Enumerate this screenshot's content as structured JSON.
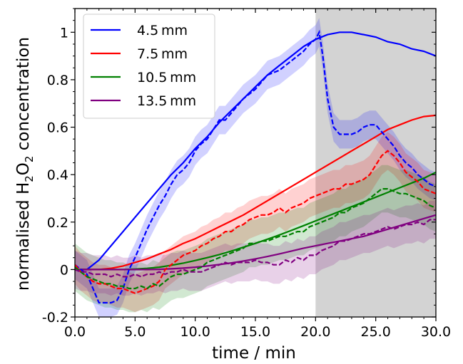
{
  "chart_data": {
    "type": "line",
    "xlabel": "time / min",
    "ylabel_prefix": "normalised H",
    "ylabel_sub1": "2",
    "ylabel_mid": "O",
    "ylabel_sub2": "2",
    "ylabel_suffix": " concentration",
    "xlim": [
      0,
      30
    ],
    "ylim": [
      -0.2,
      1.1
    ],
    "x_ticks": [
      0,
      5,
      10,
      15,
      20,
      25,
      30
    ],
    "x_tick_labels": [
      "0.0",
      "5.0",
      "10.0",
      "15.0",
      "20.0",
      "25.0",
      "30.0"
    ],
    "y_ticks": [
      -0.2,
      0,
      0.2,
      0.4,
      0.6,
      0.8,
      1
    ],
    "y_tick_labels": [
      "-0.2",
      "0",
      "0.2",
      "0.4",
      "0.6",
      "0.8",
      "1"
    ],
    "shaded_region": {
      "x_start": 20,
      "x_end": 30,
      "color": "#d3d3d3"
    },
    "legend_position": "top-left",
    "series": [
      {
        "name": "4.5 mm",
        "color": "#0000ff",
        "model_x": [
          0,
          1,
          2,
          3,
          4,
          5,
          6,
          7,
          8,
          9,
          10,
          11,
          12,
          13,
          14,
          15,
          16,
          17,
          18,
          19,
          20,
          21,
          22,
          23,
          24,
          25,
          26,
          27,
          28,
          29,
          30
        ],
        "model_y": [
          0,
          0,
          0.04,
          0.1,
          0.16,
          0.22,
          0.28,
          0.34,
          0.4,
          0.45,
          0.51,
          0.56,
          0.62,
          0.67,
          0.72,
          0.77,
          0.82,
          0.86,
          0.9,
          0.94,
          0.97,
          0.99,
          1.0,
          1.0,
          0.99,
          0.98,
          0.96,
          0.95,
          0.93,
          0.92,
          0.9
        ],
        "measured_x": [
          0,
          0.5,
          1,
          1.5,
          2,
          2.5,
          3,
          3.5,
          4,
          4.5,
          5,
          5.5,
          6,
          6.5,
          7,
          7.5,
          8,
          8.5,
          9,
          9.5,
          10,
          10.5,
          11,
          11.5,
          12,
          12.5,
          13,
          13.5,
          14,
          14.5,
          15,
          15.5,
          16,
          16.5,
          17,
          17.5,
          18,
          18.5,
          19,
          19.5,
          20,
          20.3,
          20.6,
          21,
          21.5,
          22,
          22.5,
          23,
          23.5,
          24,
          24.5,
          25,
          25.5,
          26,
          26.5,
          27,
          27.5,
          28,
          28.5,
          29,
          29.5,
          30
        ],
        "measured_y": [
          0.02,
          0.0,
          -0.02,
          -0.08,
          -0.14,
          -0.14,
          -0.14,
          -0.13,
          -0.08,
          0.0,
          0.05,
          0.11,
          0.17,
          0.22,
          0.27,
          0.31,
          0.36,
          0.4,
          0.42,
          0.45,
          0.5,
          0.53,
          0.55,
          0.59,
          0.63,
          0.63,
          0.66,
          0.69,
          0.72,
          0.74,
          0.76,
          0.79,
          0.82,
          0.83,
          0.84,
          0.86,
          0.88,
          0.9,
          0.92,
          0.95,
          0.97,
          1.0,
          0.9,
          0.72,
          0.6,
          0.57,
          0.57,
          0.57,
          0.58,
          0.6,
          0.61,
          0.61,
          0.58,
          0.55,
          0.52,
          0.48,
          0.45,
          0.43,
          0.4,
          0.38,
          0.36,
          0.35
        ],
        "band": 0.06
      },
      {
        "name": "7.5 mm",
        "color": "#ff0000",
        "model_x": [
          0,
          1,
          2,
          3,
          4,
          5,
          6,
          7,
          8,
          9,
          10,
          11,
          12,
          13,
          14,
          15,
          16,
          17,
          18,
          19,
          20,
          21,
          22,
          23,
          24,
          25,
          26,
          27,
          28,
          29,
          30
        ],
        "model_y": [
          0,
          0,
          0,
          0.005,
          0.015,
          0.03,
          0.045,
          0.065,
          0.085,
          0.11,
          0.13,
          0.155,
          0.18,
          0.205,
          0.23,
          0.26,
          0.29,
          0.32,
          0.35,
          0.38,
          0.41,
          0.44,
          0.47,
          0.5,
          0.53,
          0.56,
          0.59,
          0.61,
          0.63,
          0.645,
          0.65
        ],
        "measured_x": [
          0,
          0.5,
          1,
          1.5,
          2,
          2.5,
          3,
          3.5,
          4,
          4.5,
          5,
          5.5,
          6,
          6.5,
          7,
          7.5,
          8,
          8.5,
          9,
          9.5,
          10,
          10.5,
          11,
          11.5,
          12,
          12.5,
          13,
          13.5,
          14,
          14.5,
          15,
          15.5,
          16,
          16.5,
          17,
          17.5,
          18,
          18.5,
          19,
          19.5,
          20,
          20.5,
          21,
          21.5,
          22,
          22.5,
          23,
          23.5,
          24,
          24.5,
          25,
          25.5,
          26,
          26.5,
          27,
          27.5,
          28,
          28.5,
          29,
          29.5,
          30
        ],
        "measured_y": [
          0.02,
          -0.01,
          -0.03,
          -0.05,
          -0.06,
          -0.06,
          -0.07,
          -0.08,
          -0.08,
          -0.09,
          -0.1,
          -0.09,
          -0.08,
          -0.07,
          -0.05,
          0.0,
          0.02,
          0.04,
          0.06,
          0.07,
          0.08,
          0.1,
          0.11,
          0.13,
          0.14,
          0.16,
          0.16,
          0.18,
          0.19,
          0.21,
          0.22,
          0.23,
          0.23,
          0.24,
          0.26,
          0.24,
          0.26,
          0.27,
          0.28,
          0.3,
          0.31,
          0.32,
          0.33,
          0.34,
          0.34,
          0.36,
          0.36,
          0.37,
          0.38,
          0.4,
          0.44,
          0.48,
          0.5,
          0.48,
          0.45,
          0.41,
          0.39,
          0.37,
          0.34,
          0.33,
          0.32
        ],
        "band": 0.08
      },
      {
        "name": "10.5 mm",
        "color": "#008000",
        "model_x": [
          0,
          1,
          2,
          3,
          4,
          5,
          6,
          7,
          8,
          9,
          10,
          11,
          12,
          13,
          14,
          15,
          16,
          17,
          18,
          19,
          20,
          21,
          22,
          23,
          24,
          25,
          26,
          27,
          28,
          29,
          30
        ],
        "model_y": [
          0,
          0,
          0,
          0,
          0,
          0.002,
          0.005,
          0.01,
          0.018,
          0.027,
          0.038,
          0.05,
          0.063,
          0.078,
          0.094,
          0.11,
          0.128,
          0.146,
          0.165,
          0.185,
          0.205,
          0.225,
          0.245,
          0.265,
          0.285,
          0.305,
          0.325,
          0.345,
          0.365,
          0.385,
          0.41
        ],
        "measured_x": [
          0,
          0.5,
          1,
          1.5,
          2,
          2.5,
          3,
          3.5,
          4,
          4.5,
          5,
          5.5,
          6,
          6.5,
          7,
          7.5,
          8,
          8.5,
          9,
          9.5,
          10,
          10.5,
          11,
          11.5,
          12,
          12.5,
          13,
          13.5,
          14,
          14.5,
          15,
          15.5,
          16,
          16.5,
          17,
          17.5,
          18,
          18.5,
          19,
          19.5,
          20,
          20.5,
          21,
          21.5,
          22,
          22.5,
          23,
          23.5,
          24,
          24.5,
          25,
          25.5,
          26,
          26.5,
          27,
          27.5,
          28,
          28.5,
          29,
          29.5,
          30
        ],
        "measured_y": [
          0.01,
          -0.01,
          -0.03,
          -0.04,
          -0.05,
          -0.06,
          -0.06,
          -0.07,
          -0.07,
          -0.08,
          -0.08,
          -0.07,
          -0.08,
          -0.06,
          -0.07,
          -0.05,
          -0.03,
          -0.02,
          -0.02,
          -0.01,
          0.0,
          0.01,
          0.03,
          0.04,
          0.05,
          0.06,
          0.07,
          0.08,
          0.09,
          0.11,
          0.11,
          0.12,
          0.12,
          0.13,
          0.14,
          0.14,
          0.15,
          0.16,
          0.16,
          0.18,
          0.19,
          0.2,
          0.21,
          0.22,
          0.24,
          0.24,
          0.26,
          0.27,
          0.28,
          0.3,
          0.32,
          0.34,
          0.34,
          0.33,
          0.32,
          0.32,
          0.31,
          0.3,
          0.29,
          0.27,
          0.26
        ],
        "band": 0.1
      },
      {
        "name": "13.5 mm",
        "color": "#800080",
        "model_x": [
          0,
          1,
          2,
          3,
          4,
          5,
          6,
          7,
          8,
          9,
          10,
          11,
          12,
          13,
          14,
          15,
          16,
          17,
          18,
          19,
          20,
          21,
          22,
          23,
          24,
          25,
          26,
          27,
          28,
          29,
          30
        ],
        "model_y": [
          0,
          0,
          0,
          0,
          0,
          0,
          0,
          0.001,
          0.003,
          0.006,
          0.01,
          0.015,
          0.021,
          0.028,
          0.036,
          0.045,
          0.055,
          0.066,
          0.078,
          0.09,
          0.1,
          0.11,
          0.12,
          0.13,
          0.14,
          0.155,
          0.17,
          0.185,
          0.2,
          0.215,
          0.23
        ],
        "measured_x": [
          0,
          0.5,
          1,
          1.5,
          2,
          2.5,
          3,
          3.5,
          4,
          4.5,
          5,
          5.5,
          6,
          6.5,
          7,
          7.5,
          8,
          8.5,
          9,
          9.5,
          10,
          10.5,
          11,
          11.5,
          12,
          12.5,
          13,
          13.5,
          14,
          14.5,
          15,
          15.5,
          16,
          16.5,
          17,
          17.5,
          18,
          18.5,
          19,
          19.5,
          20,
          20.5,
          21,
          21.5,
          22,
          22.5,
          23,
          23.5,
          24,
          24.5,
          25,
          25.5,
          26,
          26.5,
          27,
          27.5,
          28,
          28.5,
          29,
          29.5,
          30
        ],
        "measured_y": [
          0.0,
          -0.01,
          -0.01,
          -0.02,
          -0.02,
          -0.02,
          -0.03,
          -0.02,
          -0.03,
          -0.03,
          -0.02,
          -0.03,
          -0.02,
          -0.02,
          -0.01,
          -0.02,
          -0.01,
          -0.01,
          0.0,
          -0.01,
          -0.01,
          -0.01,
          0.0,
          0.01,
          0.02,
          0.03,
          0.02,
          0.03,
          0.03,
          0.03,
          0.04,
          0.03,
          0.03,
          0.02,
          0.02,
          0.04,
          0.03,
          0.05,
          0.04,
          0.06,
          0.06,
          0.08,
          0.09,
          0.1,
          0.12,
          0.12,
          0.13,
          0.14,
          0.15,
          0.15,
          0.16,
          0.17,
          0.18,
          0.17,
          0.18,
          0.19,
          0.19,
          0.2,
          0.19,
          0.21,
          0.21
        ],
        "band": 0.08
      }
    ]
  }
}
